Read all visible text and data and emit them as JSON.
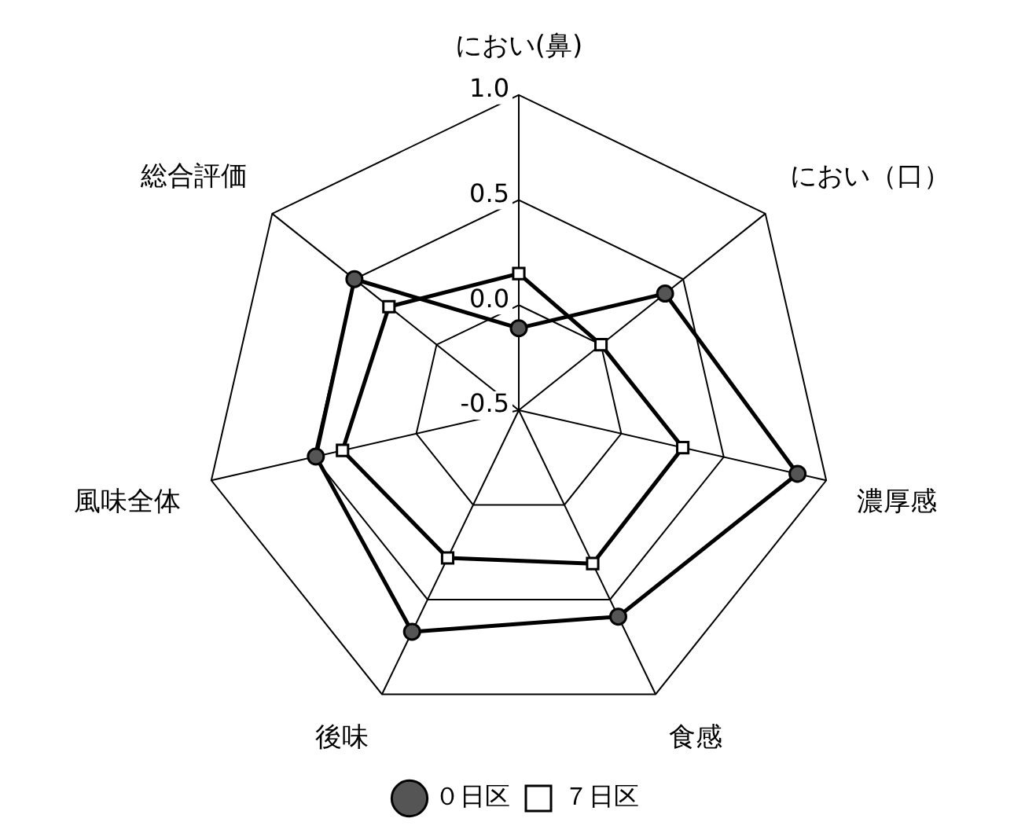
{
  "chart_data": {
    "type": "radar",
    "categories": [
      "におい(鼻)",
      "におい（口）",
      "濃厚感",
      "食感",
      "後味",
      "風味全体",
      "総合評価"
    ],
    "series": [
      {
        "name": "０日区",
        "color": "#000000",
        "marker": "circle",
        "values": [
          -0.11,
          0.39,
          0.86,
          0.59,
          0.67,
          0.49,
          0.5
        ]
      },
      {
        "name": "７日区",
        "color": "#000000",
        "marker": "square",
        "values": [
          0.15,
          0.0,
          0.3,
          0.31,
          0.28,
          0.36,
          0.29
        ]
      }
    ],
    "ylim": [
      -0.5,
      1.0
    ],
    "yticks": [
      -0.5,
      {
        "value": 0,
        "label": "0.0"
      },
      0.5,
      {
        "value": 1,
        "label": "1.0"
      }
    ],
    "grid": true,
    "legend": "bottom"
  }
}
